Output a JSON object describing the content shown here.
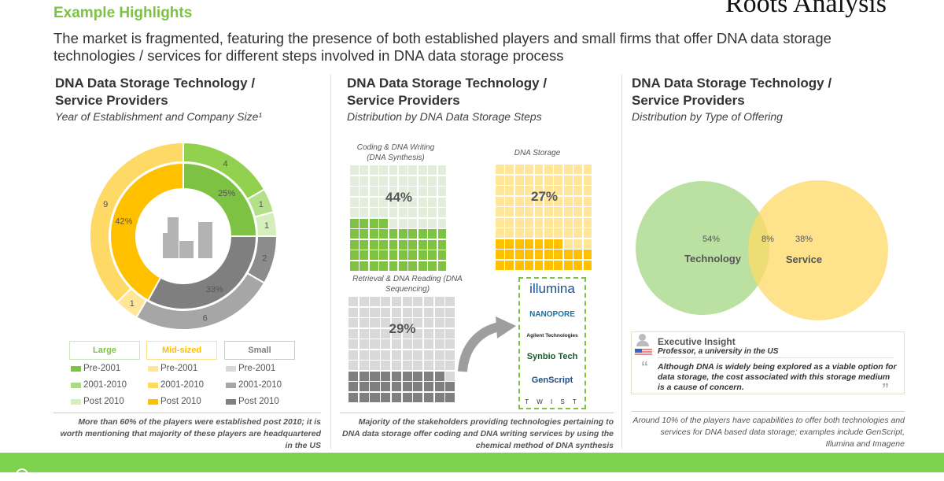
{
  "header": {
    "title": "Example Highlights",
    "subtitle": "The market is fragmented, featuring the presence of both established players and small firms that offer DNA data storage technologies / services for different steps involved in DNA data storage process",
    "logo_text": "Roots Analysis"
  },
  "columns": [
    {
      "title_line1": "DNA Data Storage Technology /",
      "title_line2": "Service Providers",
      "subtitle": "Year of Establishment and Company Size¹",
      "footnote": "More than 60% of the players were established post 2010; it is worth mentioning that majority of these players are headquartered in the US"
    },
    {
      "title_line1": "DNA Data Storage Technology /",
      "title_line2": "Service Providers",
      "subtitle": "Distribution by DNA Data Storage Steps",
      "footnote": "Majority of the stakeholders providing technologies pertaining to DNA data storage offer coding and DNA writing services by using the chemical method of DNA synthesis"
    },
    {
      "title_line1": "DNA Data Storage Technology /",
      "title_line2": "Service Providers",
      "subtitle": "Distribution by Type of Offering",
      "footnote": "Around 10% of the players have capabilities to offer both technologies and services for DNA based data storage; examples include GenScript, Illumina and Imagene"
    }
  ],
  "legend": {
    "groups": [
      {
        "label": "Large",
        "color": "#7dc242",
        "items": [
          {
            "label": "Pre-2001",
            "color": "#7dc242"
          },
          {
            "label": "2001-2010",
            "color": "#a9d98a"
          },
          {
            "label": "Post 2010",
            "color": "#d4eebc"
          }
        ]
      },
      {
        "label": "Mid-sized",
        "color": "#ffc000",
        "items": [
          {
            "label": "Pre-2001",
            "color": "#ffe699"
          },
          {
            "label": "2001-2010",
            "color": "#ffd966"
          },
          {
            "label": "Post 2010",
            "color": "#ffc000"
          }
        ]
      },
      {
        "label": "Small",
        "color": "#7f7f7f",
        "items": [
          {
            "label": "Pre-2001",
            "color": "#d9d9d9"
          },
          {
            "label": "2001-2010",
            "color": "#a6a6a6"
          },
          {
            "label": "Post 2010",
            "color": "#808080"
          }
        ]
      }
    ]
  },
  "chart_data": [
    {
      "type": "pie",
      "title": "Year of Establishment and Company Size",
      "inner": [
        {
          "label": "Large",
          "value": 25,
          "display": "25%",
          "color": "#7dc242"
        },
        {
          "label": "Small",
          "value": 33,
          "display": "33%",
          "color": "#7f7f7f"
        },
        {
          "label": "Mid-sized",
          "value": 42,
          "display": "42%",
          "color": "#ffc000"
        }
      ],
      "outer": [
        {
          "value": 4,
          "color": "#92d050"
        },
        {
          "value": 1,
          "color": "#b5e08a"
        },
        {
          "value": 1,
          "color": "#d4eebc"
        },
        {
          "value": 2,
          "color": "#8c8c8c"
        },
        {
          "value": 6,
          "color": "#a6a6a6"
        },
        {
          "value": 1,
          "color": "#ffe699"
        },
        {
          "value": 9,
          "color": "#ffd966"
        }
      ]
    },
    {
      "type": "waffle",
      "title": "Distribution by DNA Data Storage Steps",
      "series": [
        {
          "name": "Coding & DNA Writing (DNA Synthesis)",
          "value": 44,
          "display": "44%",
          "color": "#7dc242",
          "bg": "#e2eedb"
        },
        {
          "name": "DNA Storage",
          "value": 27,
          "display": "27%",
          "color": "#ffc000",
          "bg": "#ffe699"
        },
        {
          "name": "Retrieval & DNA Reading (DNA Sequencing)",
          "value": 29,
          "display": "29%",
          "color": "#7f7f7f",
          "bg": "#d9d9d9"
        }
      ]
    },
    {
      "type": "venn",
      "title": "Distribution by Type of Offering",
      "sets": [
        {
          "name": "Technology",
          "value": 54,
          "display": "54%",
          "color": "#a9d98a"
        },
        {
          "name": "Service",
          "value": 38,
          "display": "38%",
          "color": "#ffd966"
        }
      ],
      "overlap": {
        "value": 8,
        "display": "8%"
      }
    }
  ],
  "logos": [
    "illumina",
    "NANOPORE",
    "Agilent Technologies",
    "Synbio Tech",
    "GenScript",
    "T W I S T"
  ],
  "insight": {
    "title": "Executive Insight",
    "person": "Professor, a university in the US",
    "quote": "Although DNA is widely being explored as a viable option for data storage, the cost associated with this storage medium is a cause of concern."
  }
}
